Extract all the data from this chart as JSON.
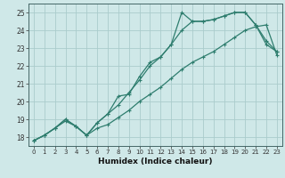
{
  "xlabel": "Humidex (Indice chaleur)",
  "bg_color": "#cfe8e8",
  "grid_color": "#aacccc",
  "line_color": "#2e7d6e",
  "xlim": [
    -0.5,
    23.5
  ],
  "ylim": [
    17.5,
    25.5
  ],
  "xticks": [
    0,
    1,
    2,
    3,
    4,
    5,
    6,
    7,
    8,
    9,
    10,
    11,
    12,
    13,
    14,
    15,
    16,
    17,
    18,
    19,
    20,
    21,
    22,
    23
  ],
  "yticks": [
    18,
    19,
    20,
    21,
    22,
    23,
    24,
    25
  ],
  "line1_x": [
    0,
    1,
    2,
    3,
    4,
    5,
    6,
    7,
    8,
    9,
    10,
    11,
    12,
    13,
    14,
    15,
    16,
    17,
    18,
    19,
    20,
    21,
    22,
    23
  ],
  "line1_y": [
    17.8,
    18.1,
    18.5,
    18.9,
    18.6,
    18.1,
    18.5,
    18.7,
    19.1,
    19.5,
    20.0,
    20.4,
    20.8,
    21.3,
    21.8,
    22.2,
    22.5,
    22.8,
    23.2,
    23.6,
    24.0,
    24.2,
    24.3,
    22.6
  ],
  "line2_x": [
    0,
    1,
    2,
    3,
    4,
    5,
    6,
    7,
    8,
    9,
    10,
    11,
    12,
    13,
    14,
    15,
    16,
    17,
    18,
    19,
    20,
    21,
    22,
    23
  ],
  "line2_y": [
    17.8,
    18.1,
    18.5,
    19.0,
    18.6,
    18.1,
    18.8,
    19.3,
    19.8,
    20.5,
    21.2,
    22.0,
    22.5,
    23.2,
    24.0,
    24.5,
    24.5,
    24.6,
    24.8,
    25.0,
    25.0,
    24.3,
    23.2,
    22.8
  ],
  "line3_x": [
    0,
    1,
    2,
    3,
    4,
    5,
    6,
    7,
    8,
    9,
    10,
    11,
    12,
    13,
    14,
    15,
    16,
    17,
    18,
    19,
    20,
    21,
    22,
    23
  ],
  "line3_y": [
    17.8,
    18.1,
    18.5,
    19.0,
    18.6,
    18.1,
    18.8,
    19.3,
    20.3,
    20.4,
    21.4,
    22.2,
    22.5,
    23.2,
    25.0,
    24.5,
    24.5,
    24.6,
    24.8,
    25.0,
    25.0,
    24.3,
    23.4,
    22.8
  ]
}
